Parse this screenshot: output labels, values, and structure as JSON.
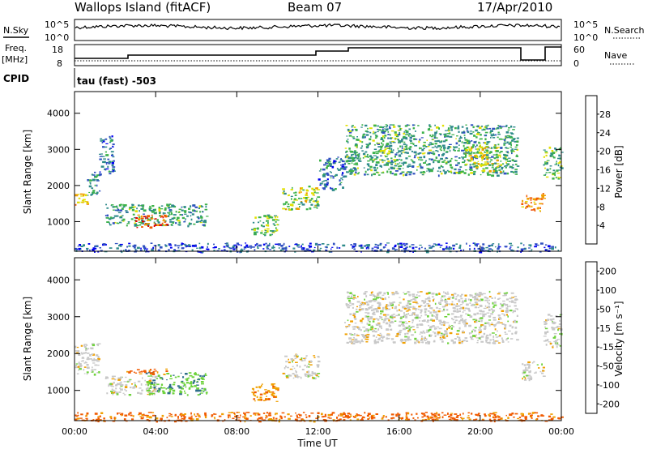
{
  "header": {
    "station": "Wallops Island (fitACF)",
    "beam": "Beam 07",
    "date": "17/Apr/2010"
  },
  "noise_panel": {
    "left_label": "N.Sky",
    "right_label": "N.Search",
    "left_ticks": [
      "10^5",
      "10^0"
    ],
    "right_ticks": [
      "10^5",
      "10^0"
    ]
  },
  "freq_panel": {
    "left_label": "Freq.",
    "left_unit": "[MHz]",
    "right_label": "Nave",
    "left_ticks": [
      "18",
      "8"
    ],
    "right_ticks": [
      "60",
      "0"
    ]
  },
  "cpid": {
    "label": "CPID",
    "value": "tau (fast) -503"
  },
  "chart_data": [
    {
      "type": "heatmap",
      "name": "power",
      "ylabel": "Slant Range [km]",
      "xlabel": "",
      "x_unit": "hours UT",
      "xlim": [
        0,
        24
      ],
      "ylim": [
        180,
        4600
      ],
      "yticks": [
        1000,
        2000,
        3000,
        4000
      ],
      "colorbar": {
        "label": "Power [dB]",
        "tick_labels": [
          "4",
          "8",
          "12",
          "16",
          "20",
          "24",
          "28"
        ],
        "colors": [
          "#0000f0",
          "#2f4fc0",
          "#2e8a8a",
          "#3cb24a",
          "#e0e000",
          "#f0a000",
          "#f05a00",
          "#e00000"
        ],
        "range": [
          0,
          32
        ]
      },
      "regions": [
        {
          "t0": 0.0,
          "t1": 0.6,
          "r0": 1450,
          "r1": 1800,
          "level": 22
        },
        {
          "t0": 0.6,
          "t1": 1.2,
          "r0": 1700,
          "r1": 2400,
          "level": 10
        },
        {
          "t0": 1.2,
          "t1": 1.9,
          "r0": 2300,
          "r1": 3400,
          "level": 8
        },
        {
          "t0": 1.5,
          "t1": 6.5,
          "r0": 900,
          "r1": 1500,
          "level": 12
        },
        {
          "t0": 3.0,
          "t1": 4.5,
          "r0": 850,
          "r1": 1200,
          "level": 26
        },
        {
          "t0": 8.7,
          "t1": 10.0,
          "r0": 650,
          "r1": 1200,
          "level": 14
        },
        {
          "t0": 10.2,
          "t1": 12.0,
          "r0": 1350,
          "r1": 2000,
          "level": 16
        },
        {
          "t0": 12.0,
          "t1": 13.3,
          "r0": 1900,
          "r1": 2800,
          "level": 8
        },
        {
          "t0": 13.3,
          "t1": 21.8,
          "r0": 2300,
          "r1": 3700,
          "level": 12
        },
        {
          "t0": 19.2,
          "t1": 21.0,
          "r0": 2400,
          "r1": 3100,
          "level": 18
        },
        {
          "t0": 22.0,
          "t1": 23.1,
          "r0": 1300,
          "r1": 1800,
          "level": 24
        },
        {
          "t0": 23.1,
          "t1": 24.0,
          "r0": 2200,
          "r1": 3100,
          "level": 14
        },
        {
          "t0": 0.0,
          "t1": 24.0,
          "r0": 180,
          "r1": 420,
          "level": 6
        }
      ]
    },
    {
      "type": "heatmap",
      "name": "velocity",
      "ylabel": "Slant Range [km]",
      "xlabel": "Time UT",
      "x_unit": "hours UT",
      "xlim": [
        0,
        24
      ],
      "ylim": [
        180,
        4600
      ],
      "yticks": [
        1000,
        2000,
        3000,
        4000
      ],
      "xtick_labels": [
        "00:00",
        "04:00",
        "08:00",
        "12:00",
        "16:00",
        "20:00",
        "00:00"
      ],
      "colorbar": {
        "label": "Velocity [m s⁻¹]",
        "tick_labels": [
          "200",
          "100",
          "50",
          "15",
          "-15",
          "-50",
          "-100",
          "-200"
        ],
        "colors": [
          "#1e3cc8",
          "#2e6e8a",
          "#2e8a3c",
          "#6ed23c",
          "#c8c8c8",
          "#f0a000",
          "#f05a00",
          "#e00000"
        ],
        "range": [
          -300,
          300
        ]
      },
      "regions": [
        {
          "t0": 0.0,
          "t1": 1.2,
          "r0": 1450,
          "r1": 2300,
          "v": 0
        },
        {
          "t0": 1.5,
          "t1": 4.0,
          "r0": 900,
          "r1": 1400,
          "v": 0
        },
        {
          "t0": 3.5,
          "t1": 6.5,
          "r0": 900,
          "r1": 1500,
          "v": 40
        },
        {
          "t0": 2.5,
          "t1": 4.5,
          "r0": 1450,
          "r1": 1600,
          "v": -60
        },
        {
          "t0": 8.7,
          "t1": 10.0,
          "r0": 700,
          "r1": 1200,
          "v": -40
        },
        {
          "t0": 10.2,
          "t1": 12.0,
          "r0": 1350,
          "r1": 2000,
          "v": 0
        },
        {
          "t0": 13.3,
          "t1": 21.8,
          "r0": 2300,
          "r1": 3700,
          "v": 0
        },
        {
          "t0": 22.0,
          "t1": 23.1,
          "r0": 1300,
          "r1": 1800,
          "v": 0
        },
        {
          "t0": 23.1,
          "t1": 24.0,
          "r0": 2200,
          "r1": 3100,
          "v": 0
        },
        {
          "t0": 0.0,
          "t1": 24.0,
          "r0": 180,
          "r1": 420,
          "v": -60
        }
      ]
    }
  ]
}
